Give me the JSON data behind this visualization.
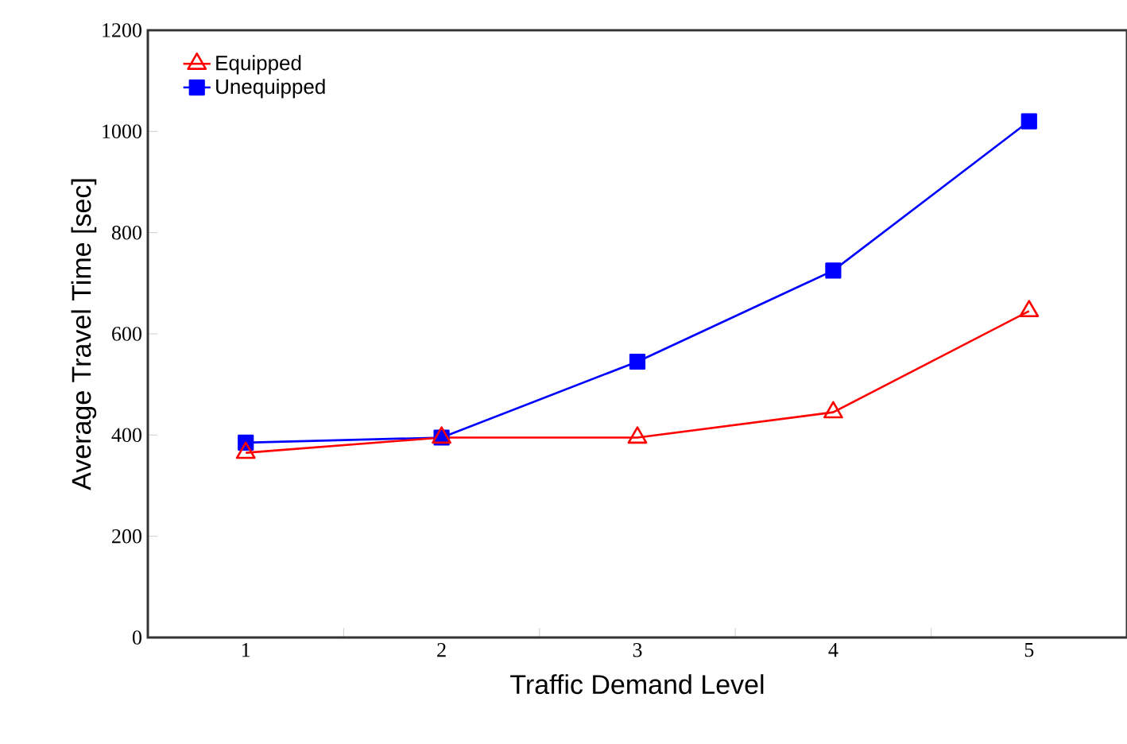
{
  "chart_data": {
    "type": "line",
    "xlabel": "Traffic Demand Level",
    "ylabel": "Average Travel Time [sec]",
    "categories": [
      "1",
      "2",
      "3",
      "4",
      "5"
    ],
    "series": [
      {
        "name": "Equipped",
        "color": "#ff0000",
        "marker": "triangle",
        "values": [
          365,
          395,
          395,
          445,
          645
        ]
      },
      {
        "name": "Unequipped",
        "color": "#0000ff",
        "marker": "square",
        "values": [
          385,
          395,
          545,
          725,
          1020
        ]
      }
    ],
    "ylim": [
      0,
      1200
    ],
    "yticks": [
      0,
      200,
      400,
      600,
      800,
      1000,
      1200
    ],
    "grid": false,
    "legend": "top left",
    "line_style": "solid"
  }
}
